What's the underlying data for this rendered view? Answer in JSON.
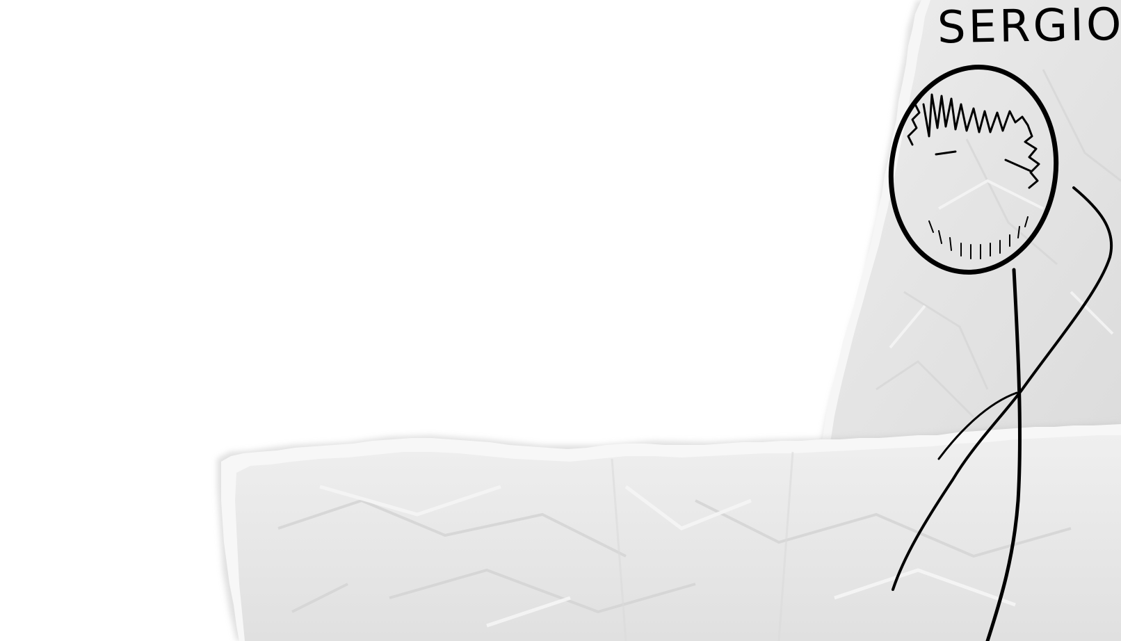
{
  "scene": {
    "character": {
      "name": "SERGIO",
      "figure_icon": "stick-figure-icon"
    },
    "paper": {
      "style": "crumpled torn paper",
      "colors": {
        "background": "#ffffff",
        "paper_light": "#f0f0f0",
        "paper_mid": "#e2e2e2",
        "paper_dark": "#d2d2d2",
        "ink": "#000000"
      }
    }
  }
}
